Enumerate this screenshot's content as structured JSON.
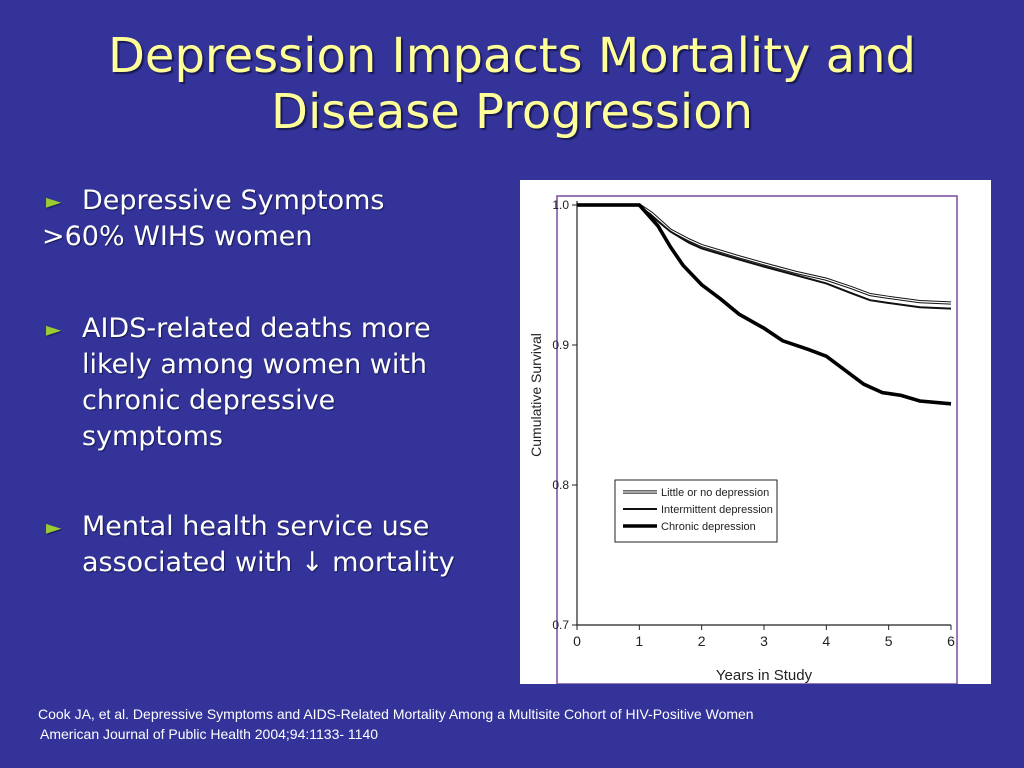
{
  "title": {
    "line1": "Depression Impacts Mortality and",
    "line2": "Disease Progression"
  },
  "bullets": {
    "b1": "Depressive Symptoms",
    "plain": ">60% WIHS women",
    "b2": "AIDS-related deaths more likely among women with chronic depressive symptoms",
    "b2_lines": [
      "AIDS-related deaths more",
      "likely among women with",
      "chronic depressive",
      "symptoms"
    ],
    "b3_lines": [
      "Mental health service use",
      "associated with ↓ mortality"
    ]
  },
  "footer": {
    "line1": "Cook JA, et al. Depressive Symptoms and AIDS-Related Mortality Among a Multisite Cohort of HIV-Positive Women",
    "line2": "American Journal of Public Health 2004;94:1133- 1140"
  },
  "chart_data": {
    "type": "line",
    "xlabel": "Years in Study",
    "ylabel": "Cumulative Survival",
    "xlim": [
      0,
      6
    ],
    "ylim": [
      0.7,
      1.0
    ],
    "x_ticks": [
      "0",
      "1",
      "2",
      "3",
      "4",
      "5",
      "6"
    ],
    "y_ticks": [
      "0.7",
      "0.8",
      "0.9",
      "1.0"
    ],
    "grid": false,
    "legend_position": "lower-left",
    "series": [
      {
        "name": "Little or no depression",
        "style": "double-thin",
        "color": "#111111",
        "points": [
          [
            0,
            1.0
          ],
          [
            1,
            1.0
          ],
          [
            1.2,
            0.994
          ],
          [
            1.5,
            0.982
          ],
          [
            1.8,
            0.975
          ],
          [
            2,
            0.971
          ],
          [
            2.3,
            0.967
          ],
          [
            2.6,
            0.963
          ],
          [
            3,
            0.958
          ],
          [
            3.5,
            0.952
          ],
          [
            4,
            0.947
          ],
          [
            4.4,
            0.941
          ],
          [
            4.7,
            0.936
          ],
          [
            5,
            0.934
          ],
          [
            5.5,
            0.931
          ],
          [
            6,
            0.93
          ]
        ]
      },
      {
        "name": "Intermittent depression",
        "style": "medium",
        "color": "#111111",
        "points": [
          [
            0,
            1.0
          ],
          [
            1,
            1.0
          ],
          [
            1.2,
            0.992
          ],
          [
            1.5,
            0.981
          ],
          [
            1.8,
            0.973
          ],
          [
            2,
            0.969
          ],
          [
            2.3,
            0.965
          ],
          [
            2.6,
            0.961
          ],
          [
            3,
            0.956
          ],
          [
            3.5,
            0.95
          ],
          [
            4,
            0.944
          ],
          [
            4.4,
            0.937
          ],
          [
            4.7,
            0.932
          ],
          [
            5,
            0.93
          ],
          [
            5.5,
            0.927
          ],
          [
            6,
            0.926
          ]
        ]
      },
      {
        "name": "Chronic depression",
        "style": "thick",
        "color": "#000000",
        "points": [
          [
            0,
            1.0
          ],
          [
            1,
            1.0
          ],
          [
            1.1,
            0.995
          ],
          [
            1.3,
            0.985
          ],
          [
            1.5,
            0.97
          ],
          [
            1.7,
            0.957
          ],
          [
            2,
            0.943
          ],
          [
            2.3,
            0.933
          ],
          [
            2.6,
            0.922
          ],
          [
            3,
            0.912
          ],
          [
            3.3,
            0.903
          ],
          [
            3.7,
            0.897
          ],
          [
            4,
            0.892
          ],
          [
            4.3,
            0.882
          ],
          [
            4.6,
            0.872
          ],
          [
            4.9,
            0.866
          ],
          [
            5.2,
            0.864
          ],
          [
            5.5,
            0.86
          ],
          [
            6,
            0.858
          ]
        ]
      }
    ]
  }
}
